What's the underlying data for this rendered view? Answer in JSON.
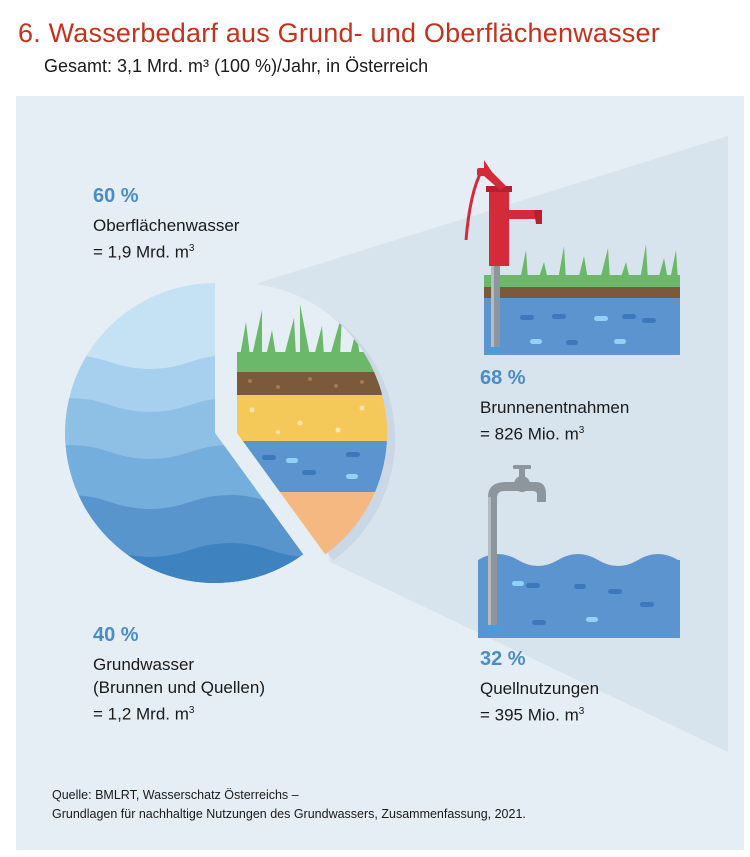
{
  "header": {
    "title": "6. Wasserbedarf aus Grund- und Oberflächenwasser",
    "subtitle": "Gesamt: 3,1 Mrd. m³ (100 %)/Jahr, in Österreich"
  },
  "chart_data": {
    "type": "pie",
    "title": "6. Wasserbedarf aus Grund- und Oberflächenwasser",
    "subtitle": "Gesamt: 3,1 Mrd. m³ (100 %)/Jahr, in Österreich",
    "total": "3,1 Mrd. m³",
    "slices": [
      {
        "name": "Oberflächenwasser",
        "percent": 60,
        "percent_label": "60 %",
        "value_label": "= 1,9 Mrd. m",
        "unit_sup": "3"
      },
      {
        "name": "Grundwasser",
        "name_line2": "(Brunnen und Quellen)",
        "percent": 40,
        "percent_label": "40 %",
        "value_label": "= 1,2 Mrd. m",
        "unit_sup": "3"
      }
    ],
    "breakdown_of": "Grundwasser",
    "breakdown": [
      {
        "name": "Brunnenentnahmen",
        "percent": 68,
        "percent_label": "68 %",
        "value_label": "= 826 Mio. m",
        "unit_sup": "3"
      },
      {
        "name": "Quellnutzungen",
        "percent": 32,
        "percent_label": "32 %",
        "value_label": "= 395 Mio. m",
        "unit_sup": "3"
      }
    ]
  },
  "footer": {
    "source_line1": "Quelle: BMLRT, Wasserschatz Österreichs –",
    "source_line2": "Grundlagen für nachhaltige Nutzungen des Grundwassers, Zusammenfassung, 2021."
  },
  "colors": {
    "title": "#c4311c",
    "percent": "#4a8cc4",
    "panel": "#e6eef5",
    "water_light": "#c5e2f5",
    "water_dark": "#3a78b8",
    "grass": "#6bb86a",
    "soil": "#7a5a3a",
    "sand": "#f5c85a",
    "clay": "#f5b880",
    "pump": "#d42a3a"
  }
}
